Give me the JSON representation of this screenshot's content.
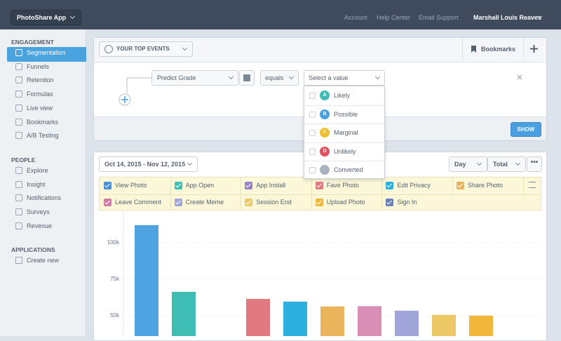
{
  "header": {
    "app_name": "PhotoShare App",
    "links": [
      "Account",
      "Help Center",
      "Email Support"
    ],
    "user": "Marshall Louis Reaves"
  },
  "sidebar": {
    "sections": [
      {
        "title": "ENGAGEMENT",
        "items": [
          "Segmentation",
          "Funnels",
          "Retention",
          "Formulas",
          "Live view",
          "Bookmarks",
          "A/B Testing"
        ]
      },
      {
        "title": "PEOPLE",
        "items": [
          "Explore",
          "Insight",
          "Notifications",
          "Surveys",
          "Revenue"
        ]
      },
      {
        "title": "APPLICATIONS",
        "items": [
          "Create new"
        ]
      }
    ]
  },
  "query": {
    "events_label": "YOUR TOP EVENTS",
    "bookmarks": "Bookmarks",
    "property": "Predict Grade",
    "operator": "equals",
    "value_placeholder": "Select a value",
    "options": [
      {
        "badge": "A",
        "label": "Likely",
        "color": "#3dbdb3"
      },
      {
        "badge": "B",
        "label": "Possible",
        "color": "#4a9fe0"
      },
      {
        "badge": "C",
        "label": "Marginal",
        "color": "#f0bf2e"
      },
      {
        "badge": "D",
        "label": "Unlikely",
        "color": "#e0505f"
      },
      {
        "label": "Converted",
        "color": "#a9b3bf"
      }
    ],
    "show_button": "SHOW"
  },
  "report": {
    "date_range": "Oct 14, 2015 - Nov 12, 2015",
    "interval": "Day",
    "measure": "Total",
    "events": [
      {
        "name": "View Photo",
        "color": "#4a90d9"
      },
      {
        "name": "App Open",
        "color": "#3dbdb3"
      },
      {
        "name": "App Install",
        "color": "#9b7fc8"
      },
      {
        "name": "Fave Photo",
        "color": "#e07a80"
      },
      {
        "name": "Edit Privacy",
        "color": "#2bb0e0"
      },
      {
        "name": "Share Photo",
        "color": "#e9b45c"
      },
      {
        "name": "Leave Comment",
        "color": "#d37ba0"
      },
      {
        "name": "Create Meme",
        "color": "#9fa5d8"
      },
      {
        "name": "Session End",
        "color": "#ecc966"
      },
      {
        "name": "Upload Photo",
        "color": "#f0b73a"
      },
      {
        "name": "Sign In",
        "color": "#6b7fb8"
      }
    ]
  },
  "chart_data": {
    "type": "bar",
    "values": [
      112000,
      66300,
      null,
      61500,
      59600,
      56300,
      56500,
      53400,
      50500,
      50000
    ],
    "colors": [
      "#4fa3e0",
      "#3dbdb3",
      "#9b7fc8",
      "#e07a80",
      "#2bb0e0",
      "#e9b45c",
      "#d88eb5",
      "#9fa5d8",
      "#ecc966",
      "#f0b73a"
    ],
    "ylim": [
      36000,
      122000
    ],
    "yticks": [
      {
        "value": 50000,
        "label": "50k"
      },
      {
        "value": 75000,
        "label": "75k"
      },
      {
        "value": 100000,
        "label": "100k"
      }
    ],
    "grid": true
  }
}
